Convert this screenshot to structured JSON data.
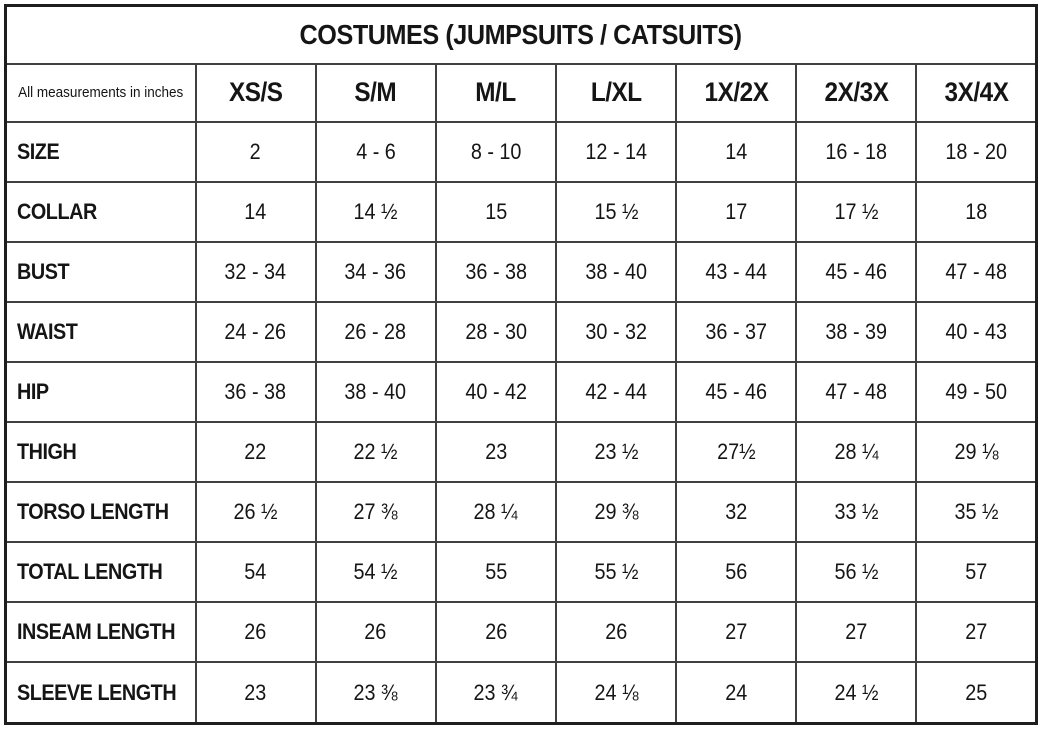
{
  "title": "COSTUMES (JUMPSUITS / CATSUITS)",
  "corner_note": "All measurements in inches",
  "colors": {
    "title_bg": "#c5c5c5",
    "border": "#404040",
    "outer_border": "#1e1e1e",
    "text": "#151515",
    "cell_bg": "#ffffff"
  },
  "chart_data": {
    "type": "table",
    "title": "COSTUMES (JUMPSUITS / CATSUITS)",
    "corner_label": "All measurements in inches",
    "units": "inches",
    "columns": [
      "XS/S",
      "S/M",
      "M/L",
      "L/XL",
      "1X/2X",
      "2X/3X",
      "3X/4X"
    ],
    "rows": [
      {
        "label": "SIZE",
        "values": [
          "2",
          "4 - 6",
          "8 - 10",
          "12 - 14",
          "14",
          "16 - 18",
          "18 - 20"
        ]
      },
      {
        "label": "COLLAR",
        "values": [
          "14",
          "14 ½",
          "15",
          "15 ½",
          "17",
          "17 ½",
          "18"
        ]
      },
      {
        "label": "BUST",
        "values": [
          "32 - 34",
          "34 - 36",
          "36 - 38",
          "38 - 40",
          "43 - 44",
          "45 - 46",
          "47 - 48"
        ]
      },
      {
        "label": "WAIST",
        "values": [
          "24 - 26",
          "26 - 28",
          "28 - 30",
          "30 - 32",
          "36 - 37",
          "38 - 39",
          "40 - 43"
        ]
      },
      {
        "label": "HIP",
        "values": [
          "36 - 38",
          "38 - 40",
          "40 - 42",
          "42 - 44",
          "45 - 46",
          "47 - 48",
          "49 - 50"
        ]
      },
      {
        "label": "THIGH",
        "values": [
          "22",
          "22 ½",
          "23",
          "23 ½",
          "27½",
          "28 ¼",
          "29 ⅛"
        ]
      },
      {
        "label": "TORSO LENGTH",
        "values": [
          "26 ½",
          "27 ⅜",
          "28 ¼",
          "29 ⅜",
          "32",
          "33 ½",
          "35 ½"
        ]
      },
      {
        "label": "TOTAL LENGTH",
        "values": [
          "54",
          "54 ½",
          "55",
          "55 ½",
          "56",
          "56 ½",
          "57"
        ]
      },
      {
        "label": "INSEAM LENGTH",
        "values": [
          "26",
          "26",
          "26",
          "26",
          "27",
          "27",
          "27"
        ]
      },
      {
        "label": "SLEEVE LENGTH",
        "values": [
          "23",
          "23 ⅜",
          "23 ¾",
          "24 ⅛",
          "24",
          "24 ½",
          "25"
        ]
      }
    ]
  }
}
